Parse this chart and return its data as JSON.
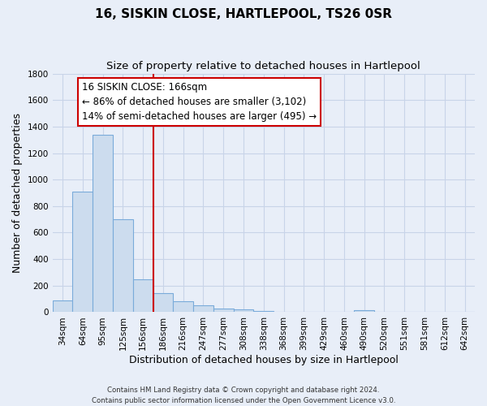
{
  "title": "16, SISKIN CLOSE, HARTLEPOOL, TS26 0SR",
  "subtitle": "Size of property relative to detached houses in Hartlepool",
  "xlabel": "Distribution of detached houses by size in Hartlepool",
  "ylabel": "Number of detached properties",
  "footer_line1": "Contains HM Land Registry data © Crown copyright and database right 2024.",
  "footer_line2": "Contains public sector information licensed under the Open Government Licence v3.0.",
  "bar_labels": [
    "34sqm",
    "64sqm",
    "95sqm",
    "125sqm",
    "156sqm",
    "186sqm",
    "216sqm",
    "247sqm",
    "277sqm",
    "308sqm",
    "338sqm",
    "368sqm",
    "399sqm",
    "429sqm",
    "460sqm",
    "490sqm",
    "520sqm",
    "551sqm",
    "581sqm",
    "612sqm",
    "642sqm"
  ],
  "bar_values": [
    88,
    910,
    1340,
    700,
    250,
    143,
    80,
    52,
    25,
    20,
    10,
    5,
    0,
    0,
    0,
    18,
    0,
    0,
    0,
    0,
    0
  ],
  "bar_face_color": "#ccdcee",
  "bar_edge_color": "#7aabda",
  "annotation_box_text_line1": "16 SISKIN CLOSE: 166sqm",
  "annotation_box_text_line2": "← 86% of detached houses are smaller (3,102)",
  "annotation_box_text_line3": "14% of semi-detached houses are larger (495) →",
  "annotation_box_color": "white",
  "annotation_box_edge_color": "#cc0000",
  "vline_color": "#cc0000",
  "ylim": [
    0,
    1800
  ],
  "yticks": [
    0,
    200,
    400,
    600,
    800,
    1000,
    1200,
    1400,
    1600,
    1800
  ],
  "grid_color": "#c8d4e8",
  "bg_color": "#e8eef8",
  "title_fontsize": 11,
  "subtitle_fontsize": 9.5,
  "axis_label_fontsize": 9,
  "tick_fontsize": 7.5,
  "annotation_fontsize": 8.5
}
